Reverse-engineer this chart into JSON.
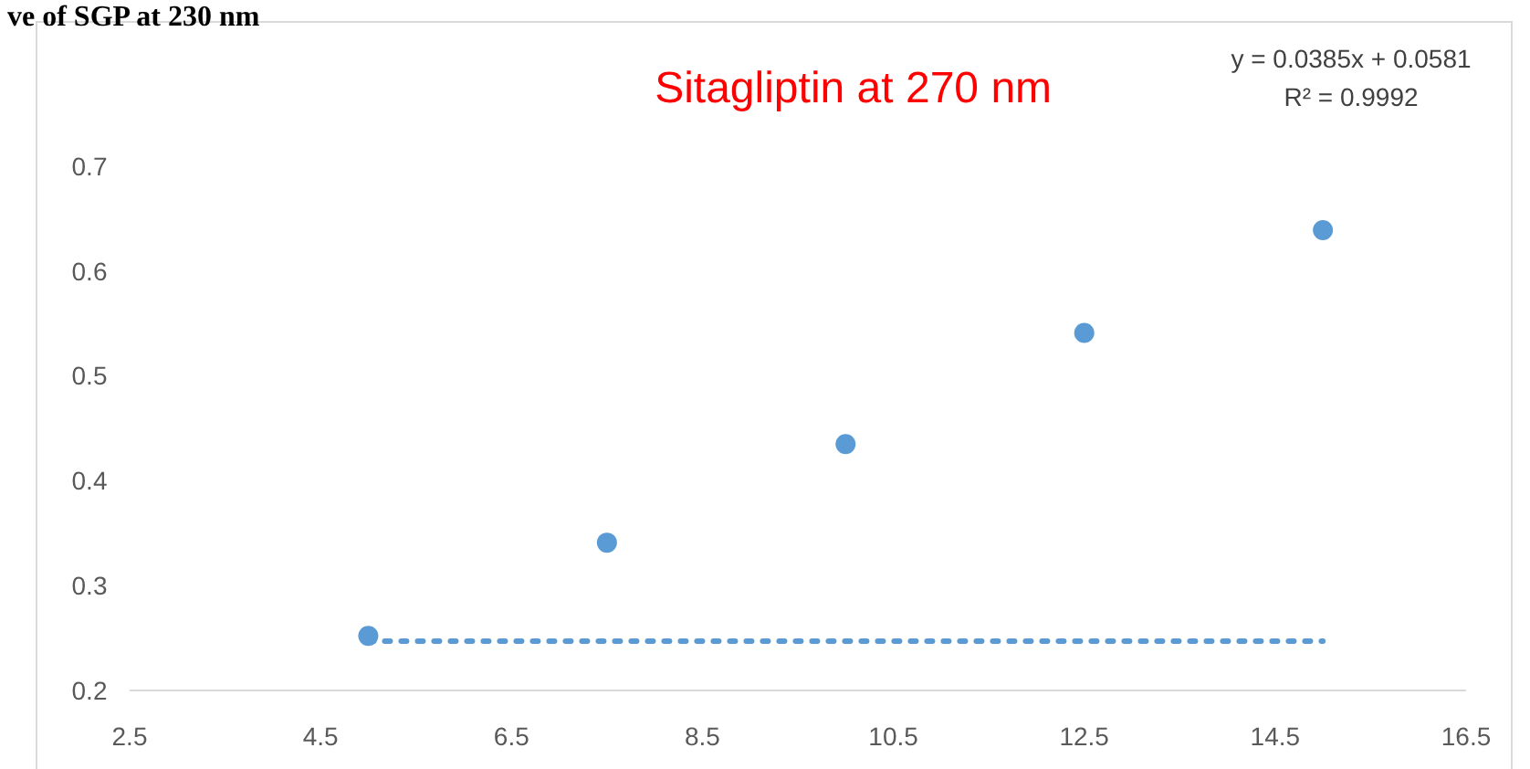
{
  "chart_data": {
    "type": "scatter",
    "title": "Sitagliptin at 270 nm",
    "x": [
      5,
      7.5,
      10,
      12.5,
      15
    ],
    "series": [
      {
        "color": "#5b9bd5",
        "marker": "circle",
        "values": [
          0.252,
          0.341,
          0.435,
          0.541,
          0.639
        ]
      },
      {
        "type": "line",
        "color": "#5b9bd5",
        "line_style": "dotted",
        "x": [
          5,
          15
        ],
        "values": [
          0.247,
          0.247
        ]
      }
    ],
    "annotations": [
      "ve of SGP at 230 nm",
      "y = 0.0385x + 0.0581",
      "R² = 0.9992"
    ],
    "xlim": [
      2.5,
      16.5
    ],
    "xticks": [
      2.5,
      4.5,
      6.5,
      8.5,
      10.5,
      12.5,
      14.5,
      16.5
    ],
    "ylim": [
      0.2,
      0.7
    ],
    "yticks": [
      0.2,
      0.3,
      0.4,
      0.5,
      0.6,
      0.7
    ],
    "grid": false
  }
}
